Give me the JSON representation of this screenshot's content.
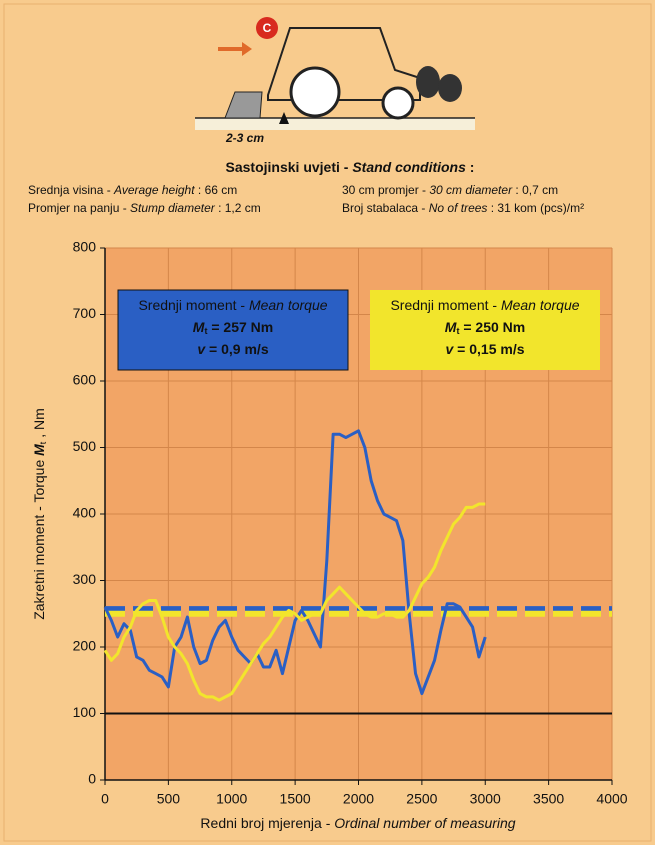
{
  "chart_data": {
    "type": "line",
    "figure_labels": {
      "marker": "C",
      "depth": "2-3 cm"
    },
    "title": [
      "Sastojinski uvjeti - ",
      "Stand conditions",
      " :"
    ],
    "conditions": [
      [
        "Srednja visina - ",
        "Average height",
        " : 66 cm"
      ],
      [
        "30 cm promjer - ",
        "30 cm diameter",
        " : 0,7 cm"
      ],
      [
        "Promjer na panju - ",
        "Stump diameter",
        " : 1,2 cm"
      ],
      [
        "Broj stabalaca - ",
        "No of trees",
        " : 31 kom (pcs)/m²"
      ]
    ],
    "x_label": [
      "Redni broj mjerenja - ",
      "Ordinal number of measuring"
    ],
    "y_label": [
      "Zakretni moment - Torque ",
      "M",
      "t",
      " , Nm"
    ],
    "xlim": [
      0,
      4000
    ],
    "xticks": [
      0,
      500,
      1000,
      1500,
      2000,
      2500,
      3000,
      3500,
      4000
    ],
    "ylim": [
      0,
      800
    ],
    "yticks": [
      0,
      100,
      200,
      300,
      400,
      500,
      600,
      700,
      800
    ],
    "grid": true,
    "reference_line": 100,
    "x": [
      0,
      50,
      100,
      150,
      200,
      250,
      300,
      350,
      400,
      450,
      500,
      550,
      600,
      650,
      700,
      750,
      800,
      850,
      900,
      950,
      1000,
      1050,
      1100,
      1150,
      1200,
      1250,
      1300,
      1350,
      1400,
      1450,
      1500,
      1550,
      1600,
      1650,
      1700,
      1750,
      1800,
      1850,
      1900,
      1950,
      2000,
      2050,
      2100,
      2150,
      2200,
      2250,
      2300,
      2350,
      2400,
      2450,
      2500,
      2550,
      2600,
      2650,
      2700,
      2750,
      2800,
      2850,
      2900,
      2950,
      3000
    ],
    "series": [
      {
        "color": "#2a5fc4",
        "mean": 257,
        "box": {
          "heading": [
            "Srednji moment - ",
            "Mean torque"
          ],
          "mean_text": [
            "M",
            "t",
            " = 257 Nm"
          ],
          "speed_text": [
            "v",
            " = 0,9 m/s"
          ]
        },
        "values": [
          260,
          240,
          215,
          235,
          225,
          185,
          180,
          165,
          160,
          155,
          140,
          200,
          215,
          245,
          200,
          175,
          180,
          210,
          230,
          240,
          215,
          195,
          185,
          175,
          190,
          170,
          170,
          195,
          160,
          200,
          240,
          255,
          240,
          220,
          200,
          330,
          520,
          520,
          515,
          520,
          525,
          500,
          450,
          420,
          400,
          395,
          390,
          360,
          250,
          160,
          130,
          155,
          180,
          225,
          265,
          265,
          260,
          245,
          230,
          185,
          215
        ]
      },
      {
        "color": "#f2e52c",
        "mean": 250,
        "box": {
          "heading": [
            "Srednji moment - ",
            "Mean torque"
          ],
          "mean_text": [
            "M",
            "t",
            " = 250 Nm"
          ],
          "speed_text": [
            "v",
            " = 0,15 m/s"
          ]
        },
        "values": [
          195,
          180,
          190,
          215,
          230,
          255,
          265,
          270,
          270,
          245,
          215,
          200,
          190,
          175,
          150,
          130,
          125,
          125,
          120,
          125,
          130,
          145,
          160,
          175,
          190,
          205,
          215,
          230,
          245,
          255,
          250,
          240,
          245,
          250,
          250,
          270,
          280,
          290,
          280,
          270,
          260,
          250,
          245,
          245,
          250,
          250,
          245,
          245,
          255,
          275,
          295,
          305,
          320,
          345,
          365,
          385,
          395,
          410,
          410,
          415,
          415
        ]
      }
    ]
  }
}
